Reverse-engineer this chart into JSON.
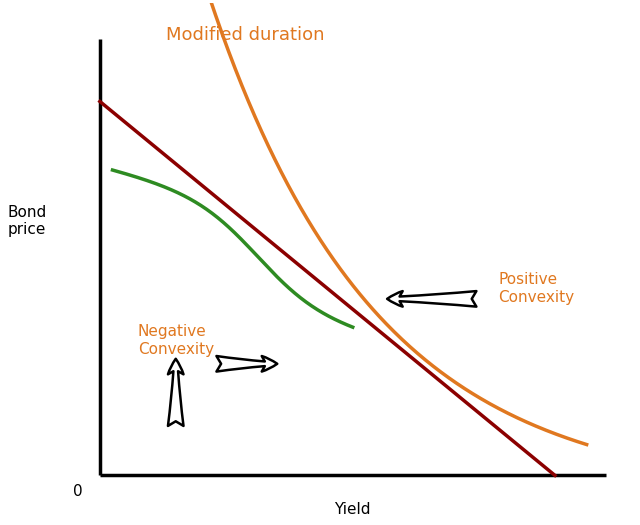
{
  "background_color": "#ffffff",
  "line_dark_red_color": "#8B0000",
  "line_orange_color": "#E07820",
  "line_green_color": "#2E8B22",
  "axis_color": "#000000",
  "text_color": "#000000",
  "orange_text_color": "#E07820",
  "annotation_neg_convexity": "Negative\nConvexity",
  "annotation_pos_convexity": "Positive\nConvexity",
  "annotation_mod_duration": "Modified duration",
  "bond_price_label": "Bond\nprice",
  "yield_label": "Yield",
  "zero_label": "0",
  "axis_lw": 2.5,
  "line_lw": 2.5
}
